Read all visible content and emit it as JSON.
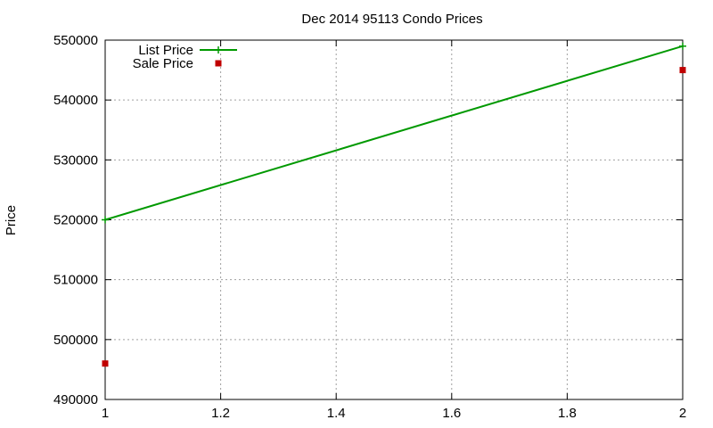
{
  "chart_data": {
    "type": "line",
    "title": "Dec 2014 95113 Condo Prices",
    "xlabel": "",
    "ylabel": "Price",
    "xlim": [
      1,
      2
    ],
    "ylim": [
      490000,
      550000
    ],
    "x_ticks": [
      1,
      1.2,
      1.4,
      1.6,
      1.8,
      2
    ],
    "x_tick_labels": [
      "1",
      "1.2",
      "1.4",
      "1.6",
      "1.8",
      "2"
    ],
    "y_ticks": [
      490000,
      500000,
      510000,
      520000,
      530000,
      540000,
      550000
    ],
    "y_tick_labels": [
      "490000",
      "500000",
      "510000",
      "520000",
      "530000",
      "540000",
      "550000"
    ],
    "grid": true,
    "legend_position": "top-left",
    "series": [
      {
        "name": "List Price",
        "style": "line-with-plus-markers",
        "color": "#009900",
        "x": [
          1,
          2
        ],
        "y": [
          520000,
          549000
        ]
      },
      {
        "name": "Sale Price",
        "style": "square-markers",
        "color": "#c00000",
        "x": [
          1,
          2
        ],
        "y": [
          496000,
          545000
        ]
      }
    ]
  }
}
